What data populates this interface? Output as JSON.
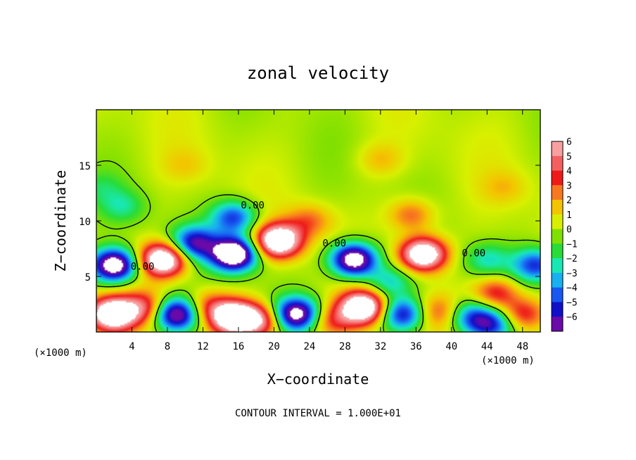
{
  "chart_data": {
    "type": "heatmap",
    "title": "zonal velocity",
    "xlabel": "X−coordinate",
    "ylabel": "Z−coordinate",
    "x_unit_left": "(×1000 m)",
    "x_unit_right": "(×1000 m)",
    "xlim": [
      0,
      50
    ],
    "ylim": [
      0,
      20
    ],
    "xticks": [
      4,
      8,
      12,
      16,
      20,
      24,
      28,
      32,
      36,
      40,
      44,
      48
    ],
    "yticks": [
      5,
      10,
      15
    ],
    "contour_note": "CONTOUR INTERVAL = 1.000E+01",
    "contour_labels": [
      {
        "text": "0.00",
        "x": 17.6,
        "z": 11.1
      },
      {
        "text": "0.00",
        "x": 26.8,
        "z": 7.7
      },
      {
        "text": "0.00",
        "x": 42.5,
        "z": 6.8
      },
      {
        "text": "0.00",
        "x": 5.2,
        "z": 5.6
      }
    ],
    "colorbar": {
      "levels": [
        6,
        5,
        4,
        3,
        2,
        1,
        0,
        -1,
        -2,
        -3,
        -4,
        -5,
        -6
      ],
      "labels": [
        "6",
        "5",
        "4",
        "3",
        "2",
        "1",
        "0",
        "−1",
        "−2",
        "−3",
        "−4",
        "−5",
        "−6"
      ],
      "colors": [
        "#f8a0a0",
        "#f46060",
        "#ee1a1a",
        "#f87820",
        "#f4c400",
        "#d8f000",
        "#80e000",
        "#28dc38",
        "#18e8b4",
        "#18b0f0",
        "#1858f0",
        "#1010c8",
        "#6a0aa8"
      ]
    },
    "features": [
      {
        "x": 2.0,
        "z": 6.0,
        "a": -9
      },
      {
        "x": 7.5,
        "z": 6.5,
        "a": 9
      },
      {
        "x": 11.0,
        "z": 8.0,
        "a": -6
      },
      {
        "x": 15.5,
        "z": 7.0,
        "a": -10
      },
      {
        "x": 15.5,
        "z": 10.3,
        "a": -5
      },
      {
        "x": 20.5,
        "z": 8.2,
        "a": 9
      },
      {
        "x": 24.0,
        "z": 10.0,
        "a": 2.5
      },
      {
        "x": 29.0,
        "z": 6.5,
        "a": -9
      },
      {
        "x": 33.0,
        "z": 4.5,
        "a": -3
      },
      {
        "x": 36.8,
        "z": 7.0,
        "a": 9
      },
      {
        "x": 35.5,
        "z": 10.5,
        "a": 3
      },
      {
        "x": 44.0,
        "z": 6.5,
        "a": -2.5
      },
      {
        "x": 45.0,
        "z": 3.5,
        "a": 4
      },
      {
        "x": 49.5,
        "z": 6.0,
        "a": -5
      },
      {
        "x": 3.0,
        "z": 11.3,
        "a": -2
      },
      {
        "x": 1.8,
        "z": 1.6,
        "a": 9
      },
      {
        "x": 5.5,
        "z": 2.2,
        "a": 4
      },
      {
        "x": 9.0,
        "z": 1.6,
        "a": -8
      },
      {
        "x": 12.5,
        "z": 2.3,
        "a": 3
      },
      {
        "x": 15.5,
        "z": 1.3,
        "a": 9
      },
      {
        "x": 18.5,
        "z": 1.0,
        "a": 5
      },
      {
        "x": 22.5,
        "z": 1.6,
        "a": -8
      },
      {
        "x": 26.5,
        "z": 1.0,
        "a": 3
      },
      {
        "x": 30.0,
        "z": 2.2,
        "a": 9
      },
      {
        "x": 34.5,
        "z": 1.6,
        "a": -6
      },
      {
        "x": 38.5,
        "z": 1.8,
        "a": 3
      },
      {
        "x": 42.0,
        "z": 1.4,
        "a": -4
      },
      {
        "x": 44.5,
        "z": 0.7,
        "a": -5
      },
      {
        "x": 48.0,
        "z": 1.6,
        "a": 4
      },
      {
        "x": 10.0,
        "z": 15.0,
        "a": 1
      },
      {
        "x": 32.0,
        "z": 15.5,
        "a": 1.5
      },
      {
        "x": 46.0,
        "z": 13.0,
        "a": 1.2
      },
      {
        "x": 0.5,
        "z": 13.0,
        "a": -1.2
      }
    ]
  }
}
